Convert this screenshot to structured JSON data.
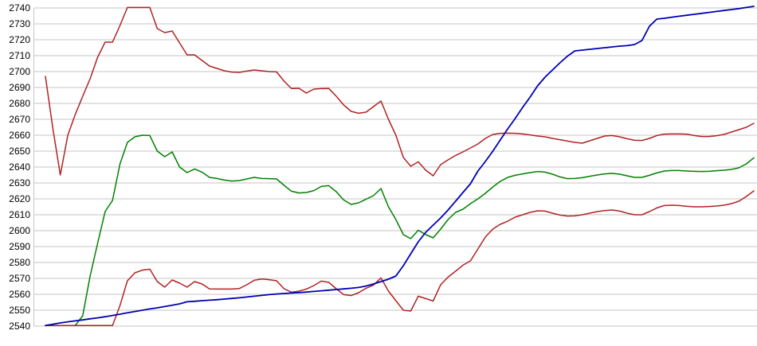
{
  "chart_data": {
    "type": "line",
    "title": "",
    "legend": false,
    "grid": {
      "horizontal": true,
      "vertical": false
    },
    "background_color": "#ffffff",
    "grid_color": "#c6c6c6",
    "axis_line_color": "#c6c6c6",
    "tick_label_color": "#000000",
    "x_axis": {
      "labels_visible": false,
      "point_count": 96
    },
    "y_axis": {
      "min": 2540,
      "max": 2740,
      "tick_step": 10,
      "ticks": [
        2740,
        2730,
        2720,
        2710,
        2700,
        2690,
        2680,
        2670,
        2660,
        2650,
        2640,
        2630,
        2620,
        2610,
        2600,
        2590,
        2580,
        2570,
        2560,
        2550,
        2540
      ]
    },
    "series": [
      {
        "name": "green-line",
        "color": "#008000",
        "values": [
          2540.4,
          2540.4,
          2540.4,
          2540.4,
          2540.4,
          2546.5,
          2571.5,
          2592,
          2612,
          2619,
          2642,
          2655.5,
          2659,
          2660,
          2659.8,
          2650,
          2646.5,
          2649.5,
          2640,
          2636.5,
          2638.8,
          2636.8,
          2633.5,
          2632.8,
          2631.8,
          2631.2,
          2631.5,
          2632.5,
          2633.5,
          2632.8,
          2632.7,
          2632.5,
          2628.5,
          2624.8,
          2623.7,
          2624,
          2625.2,
          2627.8,
          2628.3,
          2624.5,
          2619.3,
          2616.5,
          2617.5,
          2619.8,
          2622,
          2626.5,
          2615,
          2607,
          2597.5,
          2595,
          2600.3,
          2597.5,
          2595.5,
          2601,
          2607,
          2611.5,
          2613.5,
          2617,
          2620,
          2623.5,
          2627.5,
          2631,
          2633.5,
          2634.8,
          2635.7,
          2636.5,
          2637.2,
          2636.8,
          2635.5,
          2633.8,
          2632.7,
          2632.8,
          2633.3,
          2634.2,
          2635,
          2635.7,
          2636,
          2635.5,
          2634.5,
          2633.5,
          2633.5,
          2634.8,
          2636.3,
          2637.5,
          2637.8,
          2637.8,
          2637.5,
          2637.3,
          2637.2,
          2637.3,
          2637.7,
          2638,
          2638.5,
          2639.5,
          2642,
          2645.8
        ]
      },
      {
        "name": "red-lower-line",
        "color": "#b22222",
        "values": [
          2540.4,
          2540.4,
          2540.4,
          2540.4,
          2540.4,
          2540.4,
          2540.4,
          2540.4,
          2540.4,
          2540.4,
          2553,
          2568.5,
          2573.5,
          2575.2,
          2575.8,
          2568,
          2564.5,
          2569,
          2567,
          2564.5,
          2568,
          2566.5,
          2563.4,
          2563.3,
          2563.3,
          2563.3,
          2563.6,
          2566,
          2568.8,
          2569.6,
          2569.2,
          2568.5,
          2563.5,
          2561.3,
          2562,
          2563.3,
          2565.5,
          2568.3,
          2567.5,
          2563.5,
          2559.8,
          2559.2,
          2561,
          2563.8,
          2565.8,
          2570.3,
          2562,
          2556,
          2550,
          2549.5,
          2558.8,
          2557.3,
          2555.8,
          2566,
          2570.8,
          2574.5,
          2578.3,
          2581,
          2588.5,
          2596,
          2601,
          2604,
          2606,
          2608.5,
          2610,
          2611.5,
          2612.5,
          2612.3,
          2611,
          2609.8,
          2609.2,
          2609.3,
          2610,
          2611,
          2612,
          2612.6,
          2613,
          2612.3,
          2611,
          2610,
          2610,
          2612,
          2614.3,
          2615.8,
          2616,
          2615.8,
          2615.3,
          2615,
          2615,
          2615.2,
          2615.5,
          2616,
          2617,
          2618.5,
          2621.5,
          2625
        ]
      },
      {
        "name": "red-upper-line",
        "color": "#b22222",
        "values": [
          2697,
          2664,
          2635,
          2660,
          2673,
          2684.5,
          2695.5,
          2709,
          2718.5,
          2718.5,
          2729,
          2740.3,
          2740.3,
          2740.3,
          2740.3,
          2727,
          2724.5,
          2725.5,
          2718,
          2710.5,
          2710.5,
          2707,
          2703.5,
          2702,
          2700.5,
          2699.7,
          2699.5,
          2700.3,
          2701,
          2700.5,
          2700,
          2699.8,
          2694,
          2689.3,
          2689.5,
          2686.5,
          2689,
          2689.3,
          2689.4,
          2684.5,
          2679,
          2675,
          2673.8,
          2674.5,
          2678,
          2681.5,
          2670,
          2660,
          2646,
          2640.5,
          2643.3,
          2638,
          2634.5,
          2641.5,
          2644.5,
          2647.3,
          2649.5,
          2652,
          2654.5,
          2658,
          2660.5,
          2661.2,
          2661.3,
          2661.2,
          2660.8,
          2660.2,
          2659.5,
          2659,
          2658,
          2657.2,
          2656.3,
          2655.5,
          2655,
          2656.5,
          2658,
          2659.5,
          2659.8,
          2659,
          2657.8,
          2656.8,
          2656.7,
          2658,
          2659.8,
          2660.7,
          2660.8,
          2660.8,
          2660.7,
          2659.8,
          2659.2,
          2659.2,
          2659.7,
          2660.5,
          2662,
          2663.5,
          2665,
          2667.5
        ]
      },
      {
        "name": "blue-line",
        "color": "#0000b4",
        "values": [
          2540.4,
          2541.2,
          2542,
          2542.7,
          2543.3,
          2543.9,
          2544.6,
          2545.2,
          2545.9,
          2546.7,
          2547.5,
          2548.4,
          2549.2,
          2550,
          2550.8,
          2551.5,
          2552.3,
          2553.1,
          2554,
          2555.3,
          2555.6,
          2556,
          2556.3,
          2556.6,
          2557,
          2557.4,
          2557.8,
          2558.3,
          2558.8,
          2559.3,
          2559.8,
          2560.2,
          2560.5,
          2560.8,
          2561.1,
          2561.4,
          2561.8,
          2562.2,
          2562.6,
          2563,
          2563.4,
          2563.8,
          2564.3,
          2565.2,
          2566.5,
          2568,
          2569.5,
          2571.5,
          2578,
          2585.5,
          2593,
          2599,
          2603.5,
          2608,
          2613,
          2618.5,
          2624,
          2629.5,
          2637.5,
          2643.5,
          2650,
          2657,
          2664,
          2670.5,
          2677.5,
          2684,
          2691,
          2696.5,
          2701,
          2705.5,
          2709.7,
          2713,
          2713.5,
          2714,
          2714.5,
          2715,
          2715.5,
          2716,
          2716.3,
          2717,
          2719.5,
          2728.5,
          2733,
          2733.5,
          2734.2,
          2734.8,
          2735.4,
          2736,
          2736.6,
          2737.2,
          2737.8,
          2738.4,
          2739,
          2739.6,
          2740.3,
          2741
        ]
      }
    ]
  }
}
